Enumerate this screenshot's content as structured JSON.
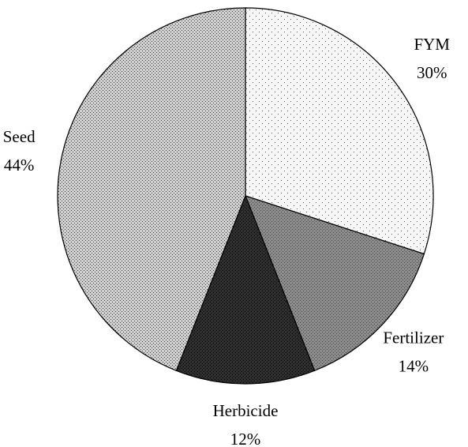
{
  "chart_data": {
    "type": "pie",
    "categories": [
      "FYM",
      "Fertilizer",
      "Herbicide",
      "Seed"
    ],
    "values": [
      30,
      14,
      12,
      44
    ],
    "value_labels": [
      "30%",
      "14%",
      "12%",
      "44%"
    ],
    "colors": [
      "#f7f7f7",
      "#8c8c8c",
      "#2e2e2e",
      "#cfcfcf"
    ]
  }
}
